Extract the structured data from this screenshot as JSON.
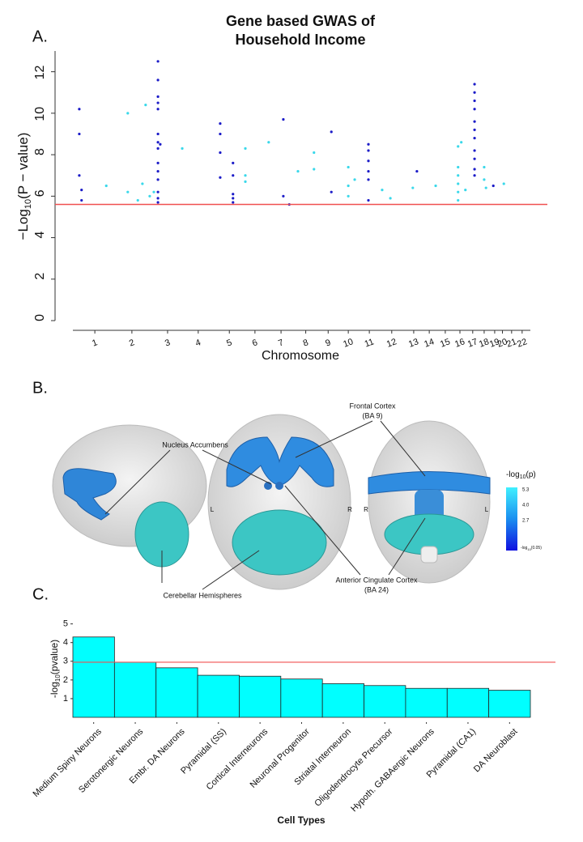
{
  "panels": [
    "A.",
    "B.",
    "C."
  ],
  "chart_data": [
    {
      "type": "scatter",
      "title": [
        "Gene based GWAS of",
        "Household Income"
      ],
      "y_label": [
        "−Log",
        "10",
        "(P − value)"
      ],
      "x_label": "Chromosome",
      "xlim": [
        0,
        100
      ],
      "ylim": [
        0,
        13
      ],
      "yticks": [
        0,
        2,
        4,
        6,
        8,
        10,
        12
      ],
      "xticks": [
        {
          "value": 4.8,
          "label": "1"
        },
        {
          "value": 12.9,
          "label": "2"
        },
        {
          "value": 20.7,
          "label": "3"
        },
        {
          "value": 27.4,
          "label": "4"
        },
        {
          "value": 34.2,
          "label": "5"
        },
        {
          "value": 39.8,
          "label": "6"
        },
        {
          "value": 45.5,
          "label": "7"
        },
        {
          "value": 50.9,
          "label": "8"
        },
        {
          "value": 55.8,
          "label": "9"
        },
        {
          "value": 60.2,
          "label": "10"
        },
        {
          "value": 64.8,
          "label": "11"
        },
        {
          "value": 69.7,
          "label": "12"
        },
        {
          "value": 74.5,
          "label": "13"
        },
        {
          "value": 77.9,
          "label": "14"
        },
        {
          "value": 81.4,
          "label": "15"
        },
        {
          "value": 84.6,
          "label": "16"
        },
        {
          "value": 87.4,
          "label": "17"
        },
        {
          "value": 89.9,
          "label": "18"
        },
        {
          "value": 92.2,
          "label": "19"
        },
        {
          "value": 93.9,
          "label": "20"
        },
        {
          "value": 95.9,
          "label": "21"
        },
        {
          "value": 98.2,
          "label": "22"
        }
      ],
      "threshold": 5.6,
      "threshold_color": "#f05050",
      "series": [
        {
          "color": "#1c1cc8",
          "x": [
            1.4,
            1.4,
            1.4,
            1.9,
            1.9,
            18.6,
            18.6,
            18.6,
            18.6,
            18.6,
            18.6,
            18.6,
            18.6,
            18.6,
            18.6,
            18.6,
            18.6,
            18.6,
            18.6,
            19.1,
            32.2,
            32.2,
            32.2,
            32.2,
            35.0,
            35.0,
            35.0,
            35.0,
            35.0,
            46.0,
            46.0,
            47.3,
            56.5,
            56.5,
            64.6,
            64.6,
            64.6,
            64.6,
            64.6,
            64.6,
            75.2,
            87.8,
            87.8,
            87.8,
            87.8,
            87.8,
            87.8,
            87.8,
            87.8,
            87.8,
            87.8,
            87.8,
            91.9
          ],
          "values": [
            10.2,
            9.0,
            7.0,
            6.3,
            5.8,
            12.5,
            11.6,
            10.8,
            10.5,
            10.2,
            9.0,
            8.6,
            8.3,
            7.6,
            7.2,
            6.8,
            6.2,
            5.9,
            5.7,
            8.5,
            9.5,
            9.0,
            8.1,
            6.9,
            7.6,
            7.0,
            6.1,
            5.9,
            5.7,
            9.7,
            6.0,
            5.6,
            9.1,
            6.2,
            8.5,
            8.2,
            7.7,
            7.2,
            6.8,
            5.8,
            7.2,
            11.4,
            11.0,
            10.6,
            10.2,
            9.6,
            9.2,
            8.8,
            8.2,
            7.8,
            7.3,
            7.0,
            6.5
          ]
        },
        {
          "color": "#3ad8ea",
          "x": [
            7.3,
            12.0,
            12.0,
            14.2,
            15.2,
            15.9,
            16.8,
            17.7,
            23.9,
            37.7,
            37.7,
            37.7,
            42.8,
            49.2,
            52.7,
            52.7,
            60.2,
            60.2,
            60.2,
            61.6,
            67.6,
            69.4,
            74.3,
            79.3,
            84.2,
            84.2,
            84.2,
            84.2,
            84.2,
            84.2,
            84.9,
            85.8,
            89.9,
            89.9,
            90.3,
            94.2
          ],
          "values": [
            6.5,
            10.0,
            6.2,
            5.8,
            6.6,
            10.4,
            6.0,
            6.2,
            8.3,
            8.3,
            7.0,
            6.7,
            8.6,
            7.2,
            8.1,
            7.3,
            7.4,
            6.5,
            6.0,
            6.8,
            6.3,
            5.9,
            6.4,
            6.5,
            8.4,
            7.4,
            7.0,
            6.6,
            6.2,
            5.8,
            8.6,
            6.3,
            6.8,
            7.4,
            6.4,
            6.6
          ]
        }
      ]
    },
    {
      "type": "bar",
      "y_label": [
        "-log",
        "10",
        "(pvalue)"
      ],
      "x_label": "Cell Types",
      "categories": [
        "Medium Spiny Neurons",
        "Serotonergic Neurons",
        "Embr. DA Neurons",
        "Pyramidal (SS)",
        "Cortical Interneurons",
        "Neuronal Progenitor",
        "Striatal Interneuron",
        "Oligodendrocyte Precursor",
        "Hypoth. GABAergic Neurons",
        "Pyramidal (CA1)",
        "DA Neuroblast"
      ],
      "values": [
        4.3,
        2.95,
        2.65,
        2.25,
        2.2,
        2.05,
        1.8,
        1.7,
        1.55,
        1.55,
        1.45
      ],
      "color": "#00ffff",
      "ylim": [
        0,
        5.2
      ],
      "yticks": [
        1,
        2,
        3,
        4,
        5
      ],
      "threshold": 2.95,
      "threshold_color": "#f05050"
    }
  ],
  "brain_figure": {
    "labels": [
      "Frontal Cortex",
      "(BA 9)",
      "Nucleus Accumbens",
      "Cerebellar Hemispheres",
      "Anterior Cingulate Cortex",
      "(BA 24)"
    ],
    "sides": [
      "L",
      "R",
      "R",
      "L"
    ],
    "colorbar": {
      "title": [
        "-log",
        "10",
        "(p)"
      ],
      "ticks": [
        "5.3",
        "4.0",
        "2.7"
      ],
      "bottom": [
        "-log",
        "10",
        "(0.05)"
      ]
    }
  }
}
